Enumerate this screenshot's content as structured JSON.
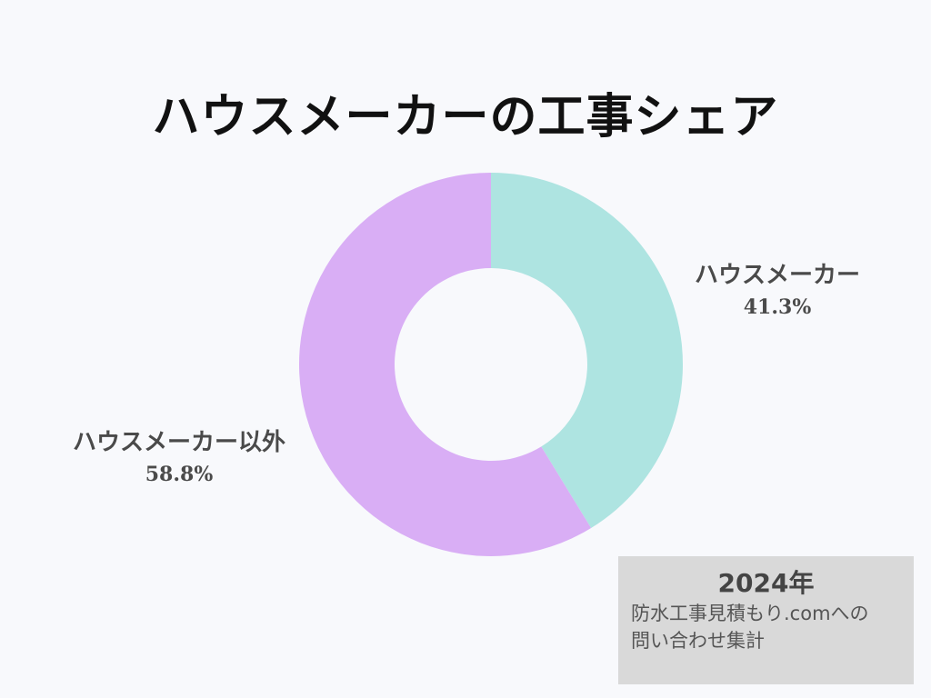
{
  "chart_data": {
    "type": "pie",
    "variant": "donut",
    "title": "ハウスメーカーの工事シェア",
    "slices": [
      {
        "label": "ハウスメーカー",
        "value": 41.3,
        "display": "41.3%",
        "color": "#aee4e1"
      },
      {
        "label": "ハウスメーカー以外",
        "value": 58.8,
        "display": "58.8%",
        "color": "#d9aef5"
      }
    ],
    "start_angle": "top",
    "direction": "clockwise",
    "legend": "none"
  },
  "source": {
    "year": "2024年",
    "line1": "防水工事見積もり.comへの",
    "line2": "問い合わせ集計"
  },
  "colors": {
    "background": "#f8f9fc",
    "title": "#111111",
    "label": "#4a4a4a",
    "source_box": "#d9d9d9"
  }
}
